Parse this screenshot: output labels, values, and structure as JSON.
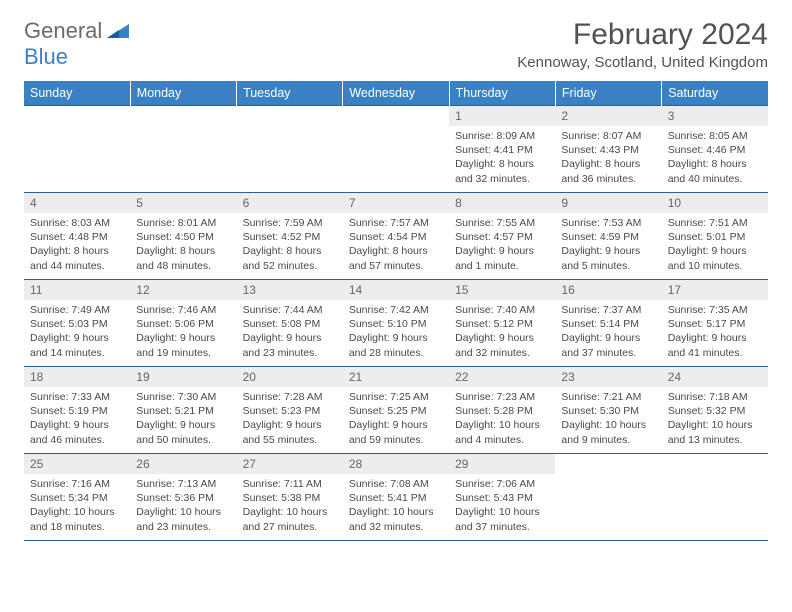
{
  "logo": {
    "text1": "General",
    "text2": "Blue"
  },
  "title": "February 2024",
  "location": "Kennoway, Scotland, United Kingdom",
  "colors": {
    "header_bg": "#3a81c4",
    "header_text": "#ffffff",
    "day_bg": "#ededed",
    "border": "#2d5f8f",
    "body_text": "#4a4a4a",
    "title_text": "#525252",
    "logo_gray": "#6b6b6b",
    "logo_blue": "#3a81c4"
  },
  "day_headers": [
    "Sunday",
    "Monday",
    "Tuesday",
    "Wednesday",
    "Thursday",
    "Friday",
    "Saturday"
  ],
  "weeks": [
    [
      null,
      null,
      null,
      null,
      {
        "n": "1",
        "sr": "8:09 AM",
        "ss": "4:41 PM",
        "dl": "8 hours and 32 minutes."
      },
      {
        "n": "2",
        "sr": "8:07 AM",
        "ss": "4:43 PM",
        "dl": "8 hours and 36 minutes."
      },
      {
        "n": "3",
        "sr": "8:05 AM",
        "ss": "4:46 PM",
        "dl": "8 hours and 40 minutes."
      }
    ],
    [
      {
        "n": "4",
        "sr": "8:03 AM",
        "ss": "4:48 PM",
        "dl": "8 hours and 44 minutes."
      },
      {
        "n": "5",
        "sr": "8:01 AM",
        "ss": "4:50 PM",
        "dl": "8 hours and 48 minutes."
      },
      {
        "n": "6",
        "sr": "7:59 AM",
        "ss": "4:52 PM",
        "dl": "8 hours and 52 minutes."
      },
      {
        "n": "7",
        "sr": "7:57 AM",
        "ss": "4:54 PM",
        "dl": "8 hours and 57 minutes."
      },
      {
        "n": "8",
        "sr": "7:55 AM",
        "ss": "4:57 PM",
        "dl": "9 hours and 1 minute."
      },
      {
        "n": "9",
        "sr": "7:53 AM",
        "ss": "4:59 PM",
        "dl": "9 hours and 5 minutes."
      },
      {
        "n": "10",
        "sr": "7:51 AM",
        "ss": "5:01 PM",
        "dl": "9 hours and 10 minutes."
      }
    ],
    [
      {
        "n": "11",
        "sr": "7:49 AM",
        "ss": "5:03 PM",
        "dl": "9 hours and 14 minutes."
      },
      {
        "n": "12",
        "sr": "7:46 AM",
        "ss": "5:06 PM",
        "dl": "9 hours and 19 minutes."
      },
      {
        "n": "13",
        "sr": "7:44 AM",
        "ss": "5:08 PM",
        "dl": "9 hours and 23 minutes."
      },
      {
        "n": "14",
        "sr": "7:42 AM",
        "ss": "5:10 PM",
        "dl": "9 hours and 28 minutes."
      },
      {
        "n": "15",
        "sr": "7:40 AM",
        "ss": "5:12 PM",
        "dl": "9 hours and 32 minutes."
      },
      {
        "n": "16",
        "sr": "7:37 AM",
        "ss": "5:14 PM",
        "dl": "9 hours and 37 minutes."
      },
      {
        "n": "17",
        "sr": "7:35 AM",
        "ss": "5:17 PM",
        "dl": "9 hours and 41 minutes."
      }
    ],
    [
      {
        "n": "18",
        "sr": "7:33 AM",
        "ss": "5:19 PM",
        "dl": "9 hours and 46 minutes."
      },
      {
        "n": "19",
        "sr": "7:30 AM",
        "ss": "5:21 PM",
        "dl": "9 hours and 50 minutes."
      },
      {
        "n": "20",
        "sr": "7:28 AM",
        "ss": "5:23 PM",
        "dl": "9 hours and 55 minutes."
      },
      {
        "n": "21",
        "sr": "7:25 AM",
        "ss": "5:25 PM",
        "dl": "9 hours and 59 minutes."
      },
      {
        "n": "22",
        "sr": "7:23 AM",
        "ss": "5:28 PM",
        "dl": "10 hours and 4 minutes."
      },
      {
        "n": "23",
        "sr": "7:21 AM",
        "ss": "5:30 PM",
        "dl": "10 hours and 9 minutes."
      },
      {
        "n": "24",
        "sr": "7:18 AM",
        "ss": "5:32 PM",
        "dl": "10 hours and 13 minutes."
      }
    ],
    [
      {
        "n": "25",
        "sr": "7:16 AM",
        "ss": "5:34 PM",
        "dl": "10 hours and 18 minutes."
      },
      {
        "n": "26",
        "sr": "7:13 AM",
        "ss": "5:36 PM",
        "dl": "10 hours and 23 minutes."
      },
      {
        "n": "27",
        "sr": "7:11 AM",
        "ss": "5:38 PM",
        "dl": "10 hours and 27 minutes."
      },
      {
        "n": "28",
        "sr": "7:08 AM",
        "ss": "5:41 PM",
        "dl": "10 hours and 32 minutes."
      },
      {
        "n": "29",
        "sr": "7:06 AM",
        "ss": "5:43 PM",
        "dl": "10 hours and 37 minutes."
      },
      null,
      null
    ]
  ],
  "labels": {
    "sunrise": "Sunrise:",
    "sunset": "Sunset:",
    "daylight": "Daylight:"
  }
}
